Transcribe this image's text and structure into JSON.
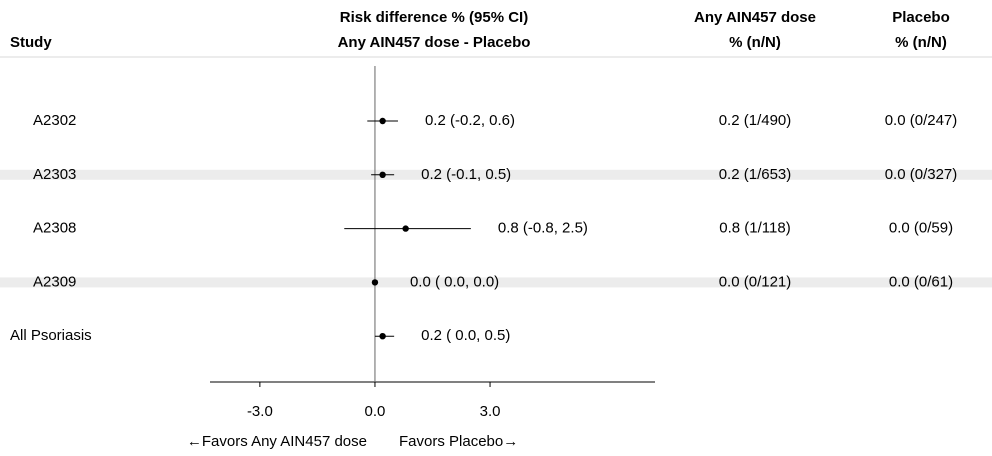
{
  "chart_data": {
    "type": "forest",
    "headers": {
      "study": "Study",
      "plot_top": "Risk difference % (95% CI)",
      "plot_sub": "Any AIN457 dose - Placebo",
      "treatment_top": "Any AIN457 dose",
      "treatment_sub": "% (n/N)",
      "placebo_top": "Placebo",
      "placebo_sub": "% (n/N)"
    },
    "rows": [
      {
        "study": "A2302",
        "estimate": 0.2,
        "lower": -0.2,
        "upper": 0.6,
        "ci_label": "0.2 (-0.2,  0.6)",
        "treatment": "0.2 (1/490)",
        "placebo": "0.0 (0/247)"
      },
      {
        "study": "A2303",
        "estimate": 0.2,
        "lower": -0.1,
        "upper": 0.5,
        "ci_label": "0.2 (-0.1,  0.5)",
        "treatment": "0.2 (1/653)",
        "placebo": "0.0 (0/327)"
      },
      {
        "study": "A2308",
        "estimate": 0.8,
        "lower": -0.8,
        "upper": 2.5,
        "ci_label": "0.8 (-0.8,  2.5)",
        "treatment": "0.8 (1/118)",
        "placebo": "0.0 (0/59)"
      },
      {
        "study": "A2309",
        "estimate": 0.0,
        "lower": 0.0,
        "upper": 0.0,
        "ci_label": "0.0 ( 0.0,  0.0)",
        "treatment": "0.0 (0/121)",
        "placebo": "0.0 (0/61)"
      },
      {
        "study": "All Psoriasis",
        "estimate": 0.2,
        "lower": 0.0,
        "upper": 0.5,
        "ci_label": "0.2 ( 0.0,  0.5)"
      }
    ],
    "xlim": [
      -4.3,
      7.3
    ],
    "xticks": [
      {
        "value": -3,
        "label": "-3.0"
      },
      {
        "value": 0,
        "label": "0.0"
      },
      {
        "value": 3,
        "label": "3.0"
      }
    ],
    "reference": 0,
    "favors_left": "←Favors Any AIN457 dose",
    "favors_right": "Favors Placebo→",
    "color": "#000000",
    "stripe_color": "#ececec"
  }
}
